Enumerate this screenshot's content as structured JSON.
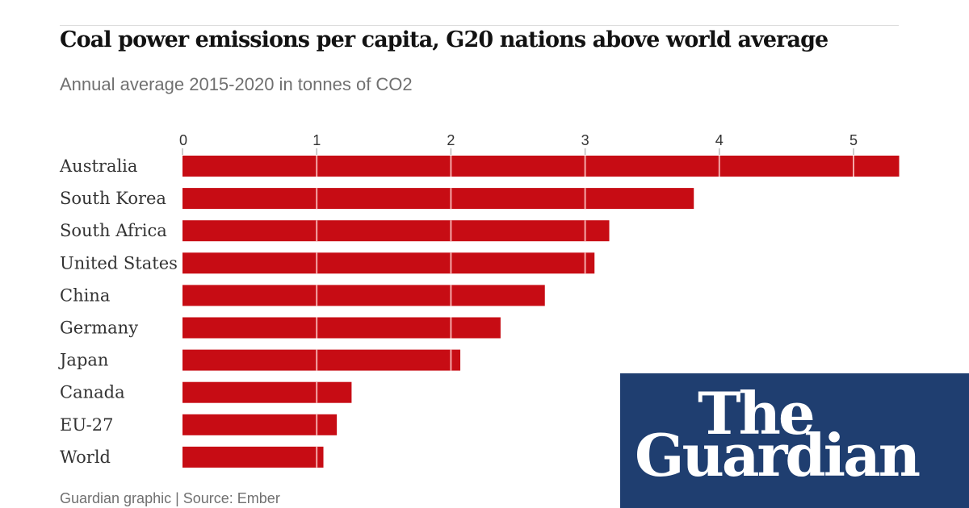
{
  "header": {
    "title": "Coal power emissions per capita, G20 nations above world average",
    "subtitle": "Annual average 2015-2020 in tonnes of CO2"
  },
  "footer": {
    "source": "Guardian graphic | Source: Ember"
  },
  "logo": {
    "line1": "The",
    "line2": "Guardian",
    "background_color": "#1f3e70"
  },
  "colors": {
    "bar": "#c70c14",
    "gridline": "#f4a7a7"
  },
  "chart_data": {
    "type": "bar",
    "orientation": "horizontal",
    "title": "Coal power emissions per capita, G20 nations above world average",
    "subtitle": "Annual average 2015-2020 in tonnes of CO2",
    "xlabel": "",
    "ylabel": "",
    "categories": [
      "Australia",
      "South Korea",
      "South Africa",
      "United States",
      "China",
      "Germany",
      "Japan",
      "Canada",
      "EU-27",
      "World"
    ],
    "values": [
      5.34,
      3.81,
      3.18,
      3.07,
      2.7,
      2.37,
      2.07,
      1.26,
      1.15,
      1.05
    ],
    "xticks": [
      0,
      1,
      2,
      3,
      4,
      5
    ],
    "xlim": [
      0,
      5.34
    ],
    "axis_position": "top",
    "grid": true,
    "legend": "none",
    "source": "Guardian graphic | Source: Ember"
  }
}
